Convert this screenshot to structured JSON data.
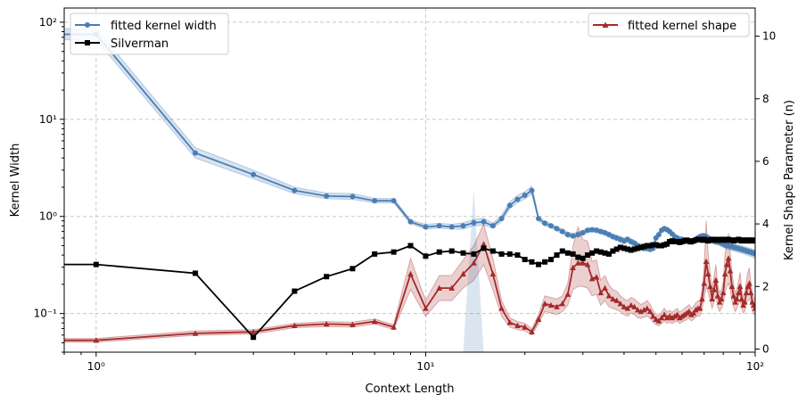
{
  "chart_data": {
    "type": "line",
    "title": "",
    "xlabel": "Context Length",
    "ylabel_left": "Kernel Width",
    "ylabel_right": "Kernel Shape Parameter (n)",
    "x_scale": "log",
    "y_left_scale": "log",
    "xlim": [
      0.8,
      100
    ],
    "ylim_left": [
      0.04,
      140
    ],
    "ylim_right": [
      -0.1,
      10.9
    ],
    "x_ticks": [
      {
        "value": 1,
        "label": "10⁰"
      },
      {
        "value": 10,
        "label": "10¹"
      },
      {
        "value": 100,
        "label": "10²"
      }
    ],
    "y_left_ticks": [
      {
        "value": 0.1,
        "label": "10⁻¹"
      },
      {
        "value": 1,
        "label": "10⁰"
      },
      {
        "value": 10,
        "label": "10¹"
      },
      {
        "value": 100,
        "label": "10²"
      }
    ],
    "y_right_ticks": [
      0,
      2,
      4,
      6,
      8,
      10
    ],
    "grid": true,
    "colors": {
      "kernel_width": "#4a7fb5",
      "silverman": "#000000",
      "kernel_shape": "#a52a2a"
    },
    "series": [
      {
        "name": "fitted kernel width",
        "axis": "left",
        "marker": "circle",
        "x": [
          0.8,
          1,
          2,
          3,
          4,
          5,
          6,
          7,
          8,
          9,
          10,
          11,
          12,
          13,
          14,
          15,
          16,
          17,
          18,
          19,
          20,
          21,
          22,
          23,
          24,
          25,
          26,
          27,
          28,
          29,
          30,
          31,
          32,
          33,
          34,
          35,
          36,
          37,
          38,
          39,
          40,
          41,
          42,
          43,
          44,
          45,
          46,
          47,
          48,
          49,
          50,
          51,
          52,
          53,
          54,
          55,
          56,
          57,
          58,
          59,
          60,
          61,
          62,
          63,
          64,
          65,
          66,
          67,
          68,
          69,
          70,
          71,
          72,
          73,
          74,
          75,
          76,
          77,
          78,
          79,
          80,
          81,
          82,
          83,
          84,
          85,
          86,
          87,
          88,
          89,
          90,
          91,
          92,
          93,
          94,
          95,
          96,
          97,
          98,
          99,
          100
        ],
        "y": [
          75,
          75,
          4.5,
          2.7,
          1.85,
          1.62,
          1.6,
          1.45,
          1.45,
          0.88,
          0.78,
          0.8,
          0.78,
          0.8,
          0.86,
          0.88,
          0.8,
          0.95,
          1.3,
          1.5,
          1.65,
          1.85,
          0.95,
          0.85,
          0.8,
          0.75,
          0.7,
          0.65,
          0.63,
          0.65,
          0.68,
          0.72,
          0.73,
          0.72,
          0.7,
          0.68,
          0.65,
          0.62,
          0.6,
          0.58,
          0.56,
          0.58,
          0.55,
          0.53,
          0.5,
          0.48,
          0.47,
          0.47,
          0.46,
          0.47,
          0.6,
          0.65,
          0.72,
          0.75,
          0.73,
          0.7,
          0.66,
          0.62,
          0.6,
          0.58,
          0.58,
          0.56,
          0.56,
          0.55,
          0.55,
          0.56,
          0.58,
          0.6,
          0.62,
          0.63,
          0.63,
          0.62,
          0.6,
          0.58,
          0.57,
          0.56,
          0.55,
          0.55,
          0.54,
          0.53,
          0.52,
          0.51,
          0.5,
          0.5,
          0.49,
          0.49,
          0.48,
          0.48,
          0.47,
          0.47,
          0.46,
          0.46,
          0.45,
          0.45,
          0.44,
          0.44,
          0.43,
          0.43,
          0.42,
          0.42,
          0.41
        ],
        "band_lower": [
          66,
          66,
          4.0,
          2.45,
          1.72,
          1.52,
          1.5,
          1.38,
          1.38,
          0.84,
          0.74,
          0.76,
          0.74,
          0.74,
          0.8,
          0.81,
          0.76,
          0.88,
          1.2,
          1.38,
          1.52,
          1.7,
          0.9,
          0.8,
          0.76,
          0.71,
          0.66,
          0.61,
          0.6,
          0.62,
          0.64,
          0.68,
          0.69,
          0.68,
          0.66,
          0.64,
          0.61,
          0.58,
          0.56,
          0.54,
          0.52,
          0.54,
          0.51,
          0.49,
          0.47,
          0.45,
          0.44,
          0.44,
          0.43,
          0.44,
          0.56,
          0.61,
          0.68,
          0.71,
          0.69,
          0.66,
          0.62,
          0.58,
          0.56,
          0.54,
          0.54,
          0.52,
          0.52,
          0.51,
          0.51,
          0.52,
          0.54,
          0.56,
          0.58,
          0.59,
          0.59,
          0.58,
          0.56,
          0.54,
          0.53,
          0.52,
          0.51,
          0.51,
          0.5,
          0.49,
          0.48,
          0.47,
          0.46,
          0.46,
          0.45,
          0.45,
          0.44,
          0.44,
          0.43,
          0.43,
          0.42,
          0.42,
          0.41,
          0.41,
          0.4,
          0.4,
          0.39,
          0.39,
          0.38,
          0.38,
          0.37
        ],
        "band_upper": [
          86,
          86,
          5.1,
          3.0,
          2.0,
          1.74,
          1.72,
          1.53,
          1.53,
          0.92,
          0.83,
          0.85,
          0.83,
          0.86,
          0.93,
          0.96,
          0.85,
          1.03,
          1.42,
          1.64,
          1.8,
          2.05,
          1.0,
          0.9,
          0.84,
          0.79,
          0.74,
          0.69,
          0.67,
          0.69,
          0.72,
          0.76,
          0.77,
          0.76,
          0.74,
          0.72,
          0.69,
          0.66,
          0.64,
          0.62,
          0.6,
          0.62,
          0.59,
          0.57,
          0.54,
          0.52,
          0.51,
          0.51,
          0.5,
          0.51,
          0.64,
          0.69,
          0.76,
          0.79,
          0.77,
          0.74,
          0.7,
          0.66,
          0.64,
          0.62,
          0.62,
          0.6,
          0.6,
          0.59,
          0.59,
          0.6,
          0.62,
          0.64,
          0.66,
          0.67,
          0.67,
          0.66,
          0.64,
          0.62,
          0.61,
          0.6,
          0.59,
          0.59,
          0.58,
          0.57,
          0.56,
          0.55,
          0.54,
          0.54,
          0.53,
          0.53,
          0.52,
          0.52,
          0.51,
          0.51,
          0.5,
          0.5,
          0.49,
          0.49,
          0.48,
          0.48,
          0.47,
          0.47,
          0.46,
          0.46,
          0.45
        ],
        "spike": {
          "x_start": 13,
          "x_peak": 14,
          "x_end": 15,
          "y_top": 1.9
        }
      },
      {
        "name": "Silverman",
        "axis": "left",
        "marker": "square",
        "x": [
          0.8,
          1,
          2,
          3,
          4,
          5,
          6,
          7,
          8,
          9,
          10,
          11,
          12,
          13,
          14,
          15,
          16,
          17,
          18,
          19,
          20,
          21,
          22,
          23,
          24,
          25,
          26,
          27,
          28,
          29,
          30,
          31,
          32,
          33,
          34,
          35,
          36,
          37,
          38,
          39,
          40,
          41,
          42,
          43,
          44,
          45,
          46,
          47,
          48,
          49,
          50,
          51,
          52,
          53,
          54,
          55,
          56,
          57,
          58,
          59,
          60,
          61,
          62,
          63,
          64,
          65,
          66,
          67,
          68,
          69,
          70,
          71,
          72,
          73,
          74,
          75,
          76,
          77,
          78,
          79,
          80,
          81,
          82,
          83,
          84,
          85,
          86,
          87,
          88,
          89,
          90,
          91,
          92,
          93,
          94,
          95,
          96,
          97,
          98,
          99,
          100
        ],
        "y": [
          0.32,
          0.32,
          0.26,
          0.057,
          0.17,
          0.24,
          0.29,
          0.41,
          0.43,
          0.5,
          0.39,
          0.43,
          0.44,
          0.42,
          0.41,
          0.47,
          0.44,
          0.41,
          0.41,
          0.4,
          0.36,
          0.34,
          0.32,
          0.34,
          0.36,
          0.4,
          0.44,
          0.42,
          0.41,
          0.38,
          0.37,
          0.4,
          0.42,
          0.44,
          0.43,
          0.42,
          0.41,
          0.44,
          0.46,
          0.48,
          0.47,
          0.46,
          0.45,
          0.46,
          0.47,
          0.48,
          0.49,
          0.5,
          0.5,
          0.51,
          0.51,
          0.5,
          0.5,
          0.51,
          0.52,
          0.55,
          0.56,
          0.55,
          0.55,
          0.54,
          0.55,
          0.56,
          0.57,
          0.56,
          0.55,
          0.56,
          0.57,
          0.58,
          0.58,
          0.57,
          0.58,
          0.57,
          0.56,
          0.57,
          0.58,
          0.57,
          0.58,
          0.57,
          0.57,
          0.58,
          0.57,
          0.58,
          0.57,
          0.58,
          0.57,
          0.57,
          0.56,
          0.57,
          0.57,
          0.58,
          0.57,
          0.56,
          0.57,
          0.57,
          0.56,
          0.57,
          0.57,
          0.56,
          0.57,
          0.57,
          0.56
        ]
      },
      {
        "name": "fitted kernel shape",
        "axis": "right",
        "marker": "triangle",
        "x": [
          0.8,
          1,
          2,
          3,
          4,
          5,
          6,
          7,
          8,
          9,
          10,
          11,
          12,
          13,
          14,
          15,
          16,
          17,
          18,
          19,
          20,
          21,
          22,
          23,
          24,
          25,
          26,
          27,
          28,
          29,
          30,
          31,
          32,
          33,
          34,
          35,
          36,
          37,
          38,
          39,
          40,
          41,
          42,
          43,
          44,
          45,
          46,
          47,
          48,
          49,
          50,
          51,
          52,
          53,
          54,
          55,
          56,
          57,
          58,
          59,
          60,
          61,
          62,
          63,
          64,
          65,
          66,
          67,
          68,
          69,
          70,
          71,
          72,
          73,
          74,
          75,
          76,
          77,
          78,
          79,
          80,
          81,
          82,
          83,
          84,
          85,
          86,
          87,
          88,
          89,
          90,
          91,
          92,
          93,
          94,
          95,
          96,
          97,
          98,
          99,
          100
        ],
        "y": [
          0.28,
          0.28,
          0.5,
          0.55,
          0.75,
          0.8,
          0.78,
          0.88,
          0.7,
          2.4,
          1.3,
          1.95,
          1.95,
          2.4,
          2.75,
          3.35,
          2.4,
          1.3,
          0.85,
          0.75,
          0.7,
          0.55,
          0.95,
          1.45,
          1.4,
          1.35,
          1.45,
          1.75,
          2.6,
          2.75,
          2.75,
          2.7,
          2.25,
          2.3,
          1.8,
          1.95,
          1.7,
          1.6,
          1.55,
          1.45,
          1.35,
          1.3,
          1.4,
          1.35,
          1.25,
          1.2,
          1.25,
          1.3,
          1.2,
          1.05,
          0.95,
          0.9,
          1.0,
          1.1,
          1.0,
          1.05,
          1.0,
          1.05,
          1.1,
          1.0,
          1.05,
          1.1,
          1.15,
          1.2,
          1.1,
          1.15,
          1.25,
          1.3,
          1.3,
          1.6,
          2.1,
          2.8,
          2.4,
          2.0,
          1.6,
          1.9,
          2.2,
          1.7,
          1.5,
          1.6,
          1.8,
          2.4,
          2.7,
          2.9,
          2.5,
          2.0,
          1.7,
          1.5,
          1.6,
          1.8,
          2.0,
          1.6,
          1.4,
          1.5,
          1.8,
          2.0,
          2.1,
          1.8,
          1.5,
          1.4,
          1.3
        ],
        "band_lower": [
          0.22,
          0.22,
          0.44,
          0.48,
          0.68,
          0.72,
          0.7,
          0.8,
          0.62,
          1.9,
          1.05,
          1.55,
          1.55,
          1.95,
          2.2,
          2.7,
          1.9,
          1.05,
          0.7,
          0.62,
          0.58,
          0.45,
          0.8,
          1.2,
          1.15,
          1.1,
          1.2,
          1.4,
          1.9,
          2.0,
          2.0,
          1.95,
          1.7,
          1.75,
          1.4,
          1.55,
          1.35,
          1.3,
          1.25,
          1.2,
          1.1,
          1.05,
          1.15,
          1.1,
          1.0,
          0.98,
          1.02,
          1.05,
          0.98,
          0.86,
          0.78,
          0.74,
          0.82,
          0.9,
          0.82,
          0.86,
          0.82,
          0.86,
          0.9,
          0.82,
          0.86,
          0.9,
          0.94,
          0.98,
          0.9,
          0.94,
          1.02,
          1.06,
          1.06,
          1.3,
          1.6,
          2.0,
          1.8,
          1.55,
          1.3,
          1.5,
          1.7,
          1.35,
          1.2,
          1.3,
          1.45,
          1.8,
          2.0,
          2.1,
          1.9,
          1.55,
          1.35,
          1.2,
          1.3,
          1.45,
          1.55,
          1.3,
          1.15,
          1.2,
          1.45,
          1.55,
          1.6,
          1.45,
          1.2,
          1.15,
          1.05
        ],
        "band_upper": [
          0.34,
          0.34,
          0.58,
          0.62,
          0.82,
          0.88,
          0.86,
          0.96,
          0.78,
          2.9,
          1.55,
          2.35,
          2.35,
          2.85,
          3.3,
          4.0,
          2.9,
          1.55,
          1.0,
          0.88,
          0.82,
          0.65,
          1.1,
          1.7,
          1.65,
          1.6,
          1.7,
          2.1,
          3.3,
          3.9,
          3.5,
          3.45,
          2.8,
          2.85,
          2.2,
          2.35,
          2.05,
          1.9,
          1.85,
          1.7,
          1.6,
          1.55,
          1.65,
          1.6,
          1.5,
          1.42,
          1.48,
          1.55,
          1.42,
          1.24,
          1.12,
          1.06,
          1.18,
          1.3,
          1.18,
          1.24,
          1.18,
          1.24,
          1.3,
          1.18,
          1.24,
          1.3,
          1.36,
          1.42,
          1.3,
          1.36,
          1.48,
          1.54,
          1.54,
          1.9,
          2.6,
          4.1,
          3.0,
          2.45,
          1.9,
          2.3,
          2.7,
          2.05,
          1.8,
          1.9,
          2.15,
          3.0,
          3.4,
          3.7,
          3.1,
          2.45,
          2.05,
          1.8,
          1.9,
          2.15,
          2.45,
          1.9,
          1.65,
          1.8,
          2.15,
          2.45,
          2.6,
          2.15,
          1.8,
          1.65,
          1.55
        ]
      }
    ],
    "legends": [
      {
        "placement": "upper-left",
        "entries": [
          "fitted kernel width",
          "Silverman"
        ]
      },
      {
        "placement": "upper-right",
        "entries": [
          "fitted kernel shape"
        ]
      }
    ]
  }
}
